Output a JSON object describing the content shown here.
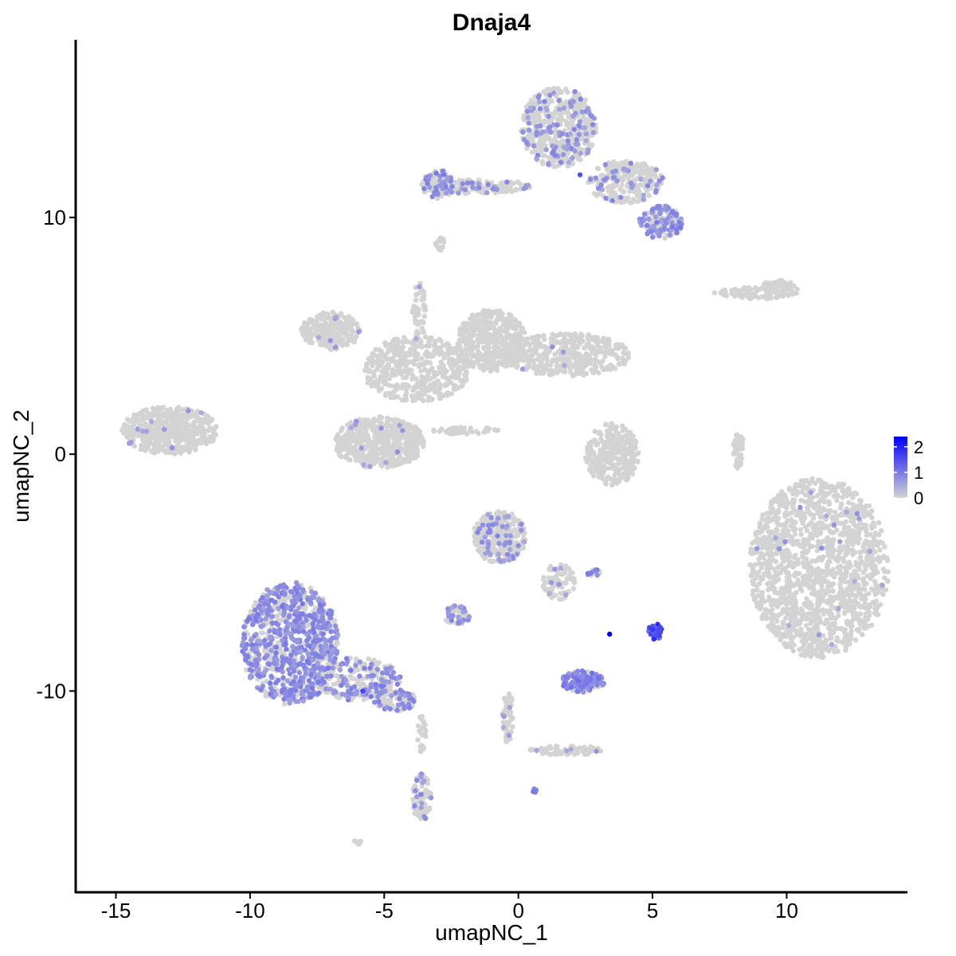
{
  "chart_data": {
    "type": "scatter",
    "title": "Dnaja4",
    "xlabel": "umapNC_1",
    "ylabel": "umapNC_2",
    "xlim": [
      -16.5,
      14.5
    ],
    "ylim": [
      -18.5,
      17.5
    ],
    "xticks": [
      -15,
      -10,
      -5,
      0,
      5,
      10
    ],
    "xtick_labels": [
      "-15",
      "-10",
      "-5",
      "0",
      "5",
      "10"
    ],
    "yticks": [
      -10,
      0,
      10
    ],
    "ytick_labels": [
      "-10",
      "0",
      "10"
    ],
    "grid": false,
    "legend_position": "right",
    "color_scale": {
      "low_color": "#d3d3d3",
      "high_color": "#0000ff",
      "min": 0,
      "max": 2.4,
      "breaks": [
        0,
        1,
        2
      ],
      "break_labels": [
        "0",
        "1",
        "2"
      ]
    },
    "clusters": [
      {
        "cx": 11.2,
        "cy": -4.8,
        "rx": 2.6,
        "ry": 3.8,
        "n": 1500,
        "expr_frac": 0.01,
        "expr_level": 0.6
      },
      {
        "cx": -8.5,
        "cy": -8.0,
        "rx": 1.8,
        "ry": 2.6,
        "n": 900,
        "expr_frac": 0.55,
        "expr_level": 0.8
      },
      {
        "cx": -6.0,
        "cy": -9.5,
        "rx": 1.6,
        "ry": 0.9,
        "n": 250,
        "expr_frac": 0.35,
        "expr_level": 0.8
      },
      {
        "cx": -4.6,
        "cy": -10.4,
        "rx": 0.8,
        "ry": 0.45,
        "n": 90,
        "expr_frac": 0.35,
        "expr_level": 0.8
      },
      {
        "cx": -3.6,
        "cy": -14.5,
        "rx": 0.35,
        "ry": 1.0,
        "n": 80,
        "expr_frac": 0.2,
        "expr_level": 0.7
      },
      {
        "cx": -0.7,
        "cy": -3.5,
        "rx": 1.0,
        "ry": 1.1,
        "n": 320,
        "expr_frac": 0.12,
        "expr_level": 0.7
      },
      {
        "cx": -2.3,
        "cy": -6.8,
        "rx": 0.5,
        "ry": 0.4,
        "n": 70,
        "expr_frac": 0.3,
        "expr_level": 0.7
      },
      {
        "cx": 2.4,
        "cy": -9.6,
        "rx": 0.8,
        "ry": 0.45,
        "n": 160,
        "expr_frac": 0.6,
        "expr_level": 0.9
      },
      {
        "cx": 5.1,
        "cy": -7.5,
        "rx": 0.25,
        "ry": 0.35,
        "n": 45,
        "expr_frac": 0.9,
        "expr_level": 1.5
      },
      {
        "cx": 3.5,
        "cy": 0.0,
        "rx": 1.0,
        "ry": 1.3,
        "n": 300,
        "expr_frac": 0.0,
        "expr_level": 0.0
      },
      {
        "cx": -13.0,
        "cy": 1.0,
        "rx": 1.8,
        "ry": 1.0,
        "n": 500,
        "expr_frac": 0.02,
        "expr_level": 0.6
      },
      {
        "cx": -5.2,
        "cy": 0.5,
        "rx": 1.7,
        "ry": 1.1,
        "n": 550,
        "expr_frac": 0.03,
        "expr_level": 0.6
      },
      {
        "cx": -7.0,
        "cy": 5.2,
        "rx": 1.1,
        "ry": 0.8,
        "n": 250,
        "expr_frac": 0.01,
        "expr_level": 0.6
      },
      {
        "cx": -3.8,
        "cy": 3.6,
        "rx": 2.0,
        "ry": 1.4,
        "n": 450,
        "expr_frac": 0.0,
        "expr_level": 0.0
      },
      {
        "cx": -1.0,
        "cy": 4.8,
        "rx": 1.3,
        "ry": 1.3,
        "n": 380,
        "expr_frac": 0.0,
        "expr_level": 0.0
      },
      {
        "cx": 1.8,
        "cy": 4.2,
        "rx": 2.4,
        "ry": 0.9,
        "n": 420,
        "expr_frac": 0.01,
        "expr_level": 0.6
      },
      {
        "cx": 1.5,
        "cy": 13.8,
        "rx": 1.4,
        "ry": 1.7,
        "n": 500,
        "expr_frac": 0.18,
        "expr_level": 0.7
      },
      {
        "cx": 4.0,
        "cy": 11.5,
        "rx": 1.4,
        "ry": 0.9,
        "n": 250,
        "expr_frac": 0.15,
        "expr_level": 0.7
      },
      {
        "cx": 5.3,
        "cy": 9.8,
        "rx": 0.8,
        "ry": 0.7,
        "n": 180,
        "expr_frac": 0.45,
        "expr_level": 0.8
      },
      {
        "cx": -1.6,
        "cy": 11.3,
        "rx": 2.1,
        "ry": 0.3,
        "n": 160,
        "expr_frac": 0.2,
        "expr_level": 0.7
      },
      {
        "cx": -3.0,
        "cy": 11.4,
        "rx": 0.6,
        "ry": 0.6,
        "n": 100,
        "expr_frac": 0.3,
        "expr_level": 0.8
      },
      {
        "cx": 8.9,
        "cy": 6.8,
        "rx": 1.6,
        "ry": 0.25,
        "n": 90,
        "expr_frac": 0.0,
        "expr_level": 0.0
      },
      {
        "cx": 9.7,
        "cy": 7.0,
        "rx": 0.7,
        "ry": 0.35,
        "n": 60,
        "expr_frac": 0.0,
        "expr_level": 0.0
      },
      {
        "cx": 8.2,
        "cy": 0.2,
        "rx": 0.2,
        "ry": 0.8,
        "n": 40,
        "expr_frac": 0.0,
        "expr_level": 0.0
      },
      {
        "cx": 1.8,
        "cy": -12.5,
        "rx": 1.4,
        "ry": 0.2,
        "n": 70,
        "expr_frac": 0.05,
        "expr_level": 0.6
      },
      {
        "cx": -0.4,
        "cy": -11.0,
        "rx": 0.2,
        "ry": 1.2,
        "n": 50,
        "expr_frac": 0.05,
        "expr_level": 0.6
      },
      {
        "cx": 1.5,
        "cy": -5.4,
        "rx": 0.6,
        "ry": 0.8,
        "n": 80,
        "expr_frac": 0.08,
        "expr_level": 0.6
      },
      {
        "cx": 2.8,
        "cy": -5.0,
        "rx": 0.25,
        "ry": 0.15,
        "n": 20,
        "expr_frac": 0.5,
        "expr_level": 0.8
      },
      {
        "cx": -3.7,
        "cy": 6.0,
        "rx": 0.25,
        "ry": 1.3,
        "n": 50,
        "expr_frac": 0.05,
        "expr_level": 0.6
      },
      {
        "cx": -2.0,
        "cy": 1.0,
        "rx": 1.3,
        "ry": 0.15,
        "n": 40,
        "expr_frac": 0.0,
        "expr_level": 0.0
      },
      {
        "cx": -2.9,
        "cy": 8.9,
        "rx": 0.2,
        "ry": 0.3,
        "n": 20,
        "expr_frac": 0.0,
        "expr_level": 0.0
      },
      {
        "cx": 0.6,
        "cy": -14.2,
        "rx": 0.1,
        "ry": 0.1,
        "n": 10,
        "expr_frac": 0.6,
        "expr_level": 0.9
      },
      {
        "cx": -6.0,
        "cy": -16.4,
        "rx": 0.15,
        "ry": 0.1,
        "n": 8,
        "expr_frac": 0.0,
        "expr_level": 0.0
      },
      {
        "cx": -3.6,
        "cy": -11.8,
        "rx": 0.15,
        "ry": 0.9,
        "n": 25,
        "expr_frac": 0.0,
        "expr_level": 0.0
      }
    ],
    "highlight_points": [
      {
        "x": 3.4,
        "y": -7.6,
        "v": 2.4
      },
      {
        "x": -5.8,
        "y": -10.0,
        "v": 1.6
      },
      {
        "x": 2.3,
        "y": 11.8,
        "v": 1.5
      },
      {
        "x": 5.0,
        "y": -7.4,
        "v": 1.8
      }
    ]
  }
}
